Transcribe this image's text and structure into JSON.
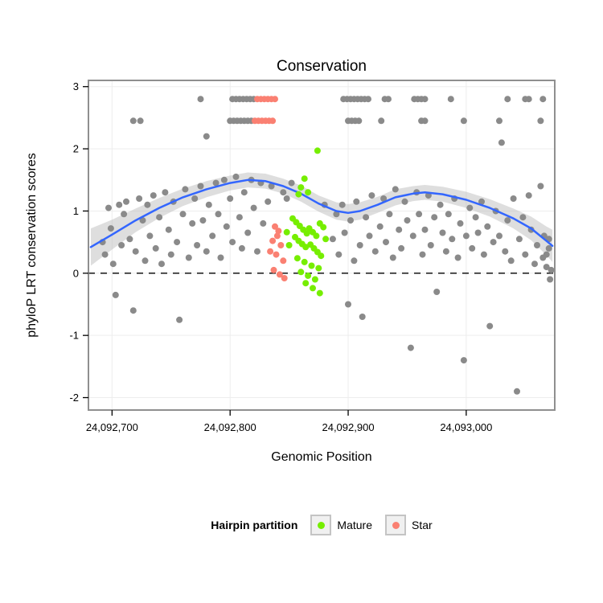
{
  "chart": {
    "title": "Conservation",
    "x_label": "Genomic Position",
    "y_label": "phyloP LRT conservation scores"
  },
  "legend": {
    "title": "Hairpin partition",
    "items": [
      {
        "label": "Mature",
        "color": "#76EE00"
      },
      {
        "label": "Star",
        "color": "#FA8072"
      }
    ]
  },
  "chart_data": {
    "type": "scatter",
    "title": "Conservation",
    "xlabel": "Genomic Position",
    "ylabel": "phyloP LRT conservation scores",
    "x_domain": [
      24092680,
      24093075
    ],
    "y_domain": [
      -2.2,
      3.1
    ],
    "hline": 0,
    "grid": true,
    "legend_position": "bottom",
    "x_ticks": [
      {
        "value": 24092700,
        "label": "24,092,700"
      },
      {
        "value": 24092800,
        "label": "24,092,800"
      },
      {
        "value": 24092900,
        "label": "24,092,900"
      },
      {
        "value": 24093000,
        "label": "24,093,000"
      }
    ],
    "y_ticks": [
      {
        "value": 3,
        "label": "3"
      },
      {
        "value": 2,
        "label": "2"
      },
      {
        "value": 1,
        "label": "1"
      },
      {
        "value": 0,
        "label": "0"
      },
      {
        "value": -1,
        "label": "-1"
      },
      {
        "value": -2,
        "label": "-2"
      }
    ],
    "colors": {
      "other": "#8a8a8a",
      "mature": "#76EE00",
      "star": "#FA8072",
      "smooth": "#3366FF",
      "band": "#bdbdbd",
      "grid": "#ededed",
      "border": "#8f8f8f"
    },
    "series": [
      {
        "name": "Other",
        "color": "#8a8a8a",
        "points": [
          [
            24092692,
            0.5
          ],
          [
            24092694,
            0.3
          ],
          [
            24092697,
            1.05
          ],
          [
            24092699,
            0.72
          ],
          [
            24092701,
            0.15
          ],
          [
            24092703,
            -0.35
          ],
          [
            24092706,
            1.1
          ],
          [
            24092708,
            0.45
          ],
          [
            24092710,
            0.95
          ],
          [
            24092712,
            1.15
          ],
          [
            24092715,
            0.55
          ],
          [
            24092718,
            -0.6
          ],
          [
            24092720,
            0.35
          ],
          [
            24092723,
            1.2
          ],
          [
            24092726,
            0.85
          ],
          [
            24092728,
            0.2
          ],
          [
            24092730,
            1.1
          ],
          [
            24092732,
            0.6
          ],
          [
            24092735,
            1.25
          ],
          [
            24092737,
            0.4
          ],
          [
            24092740,
            0.9
          ],
          [
            24092742,
            0.15
          ],
          [
            24092745,
            1.3
          ],
          [
            24092748,
            0.7
          ],
          [
            24092750,
            0.3
          ],
          [
            24092752,
            1.15
          ],
          [
            24092755,
            0.5
          ],
          [
            24092757,
            -0.75
          ],
          [
            24092760,
            0.95
          ],
          [
            24092762,
            1.35
          ],
          [
            24092765,
            0.25
          ],
          [
            24092768,
            0.8
          ],
          [
            24092770,
            1.2
          ],
          [
            24092780,
            2.2
          ],
          [
            24092772,
            0.45
          ],
          [
            24092775,
            1.4
          ],
          [
            24092777,
            0.85
          ],
          [
            24092780,
            0.35
          ],
          [
            24092782,
            1.1
          ],
          [
            24092785,
            0.6
          ],
          [
            24092788,
            1.45
          ],
          [
            24092790,
            0.95
          ],
          [
            24092792,
            0.25
          ],
          [
            24092795,
            1.5
          ],
          [
            24092797,
            0.75
          ],
          [
            24092800,
            1.2
          ],
          [
            24092802,
            0.5
          ],
          [
            24092805,
            1.55
          ],
          [
            24092808,
            0.9
          ],
          [
            24092810,
            0.4
          ],
          [
            24092812,
            1.3
          ],
          [
            24092815,
            0.65
          ],
          [
            24092818,
            1.5
          ],
          [
            24092820,
            1.05
          ],
          [
            24092823,
            0.35
          ],
          [
            24092826,
            1.45
          ],
          [
            24092828,
            0.8
          ],
          [
            24092832,
            1.15
          ],
          [
            24092835,
            1.4
          ],
          [
            24092845,
            1.3
          ],
          [
            24092848,
            1.2
          ],
          [
            24092852,
            1.45
          ],
          [
            24092880,
            1.1
          ],
          [
            24092887,
            0.55
          ],
          [
            24092890,
            0.95
          ],
          [
            24092892,
            0.3
          ],
          [
            24092895,
            1.1
          ],
          [
            24092897,
            0.65
          ],
          [
            24092900,
            -0.5
          ],
          [
            24092902,
            0.85
          ],
          [
            24092905,
            0.2
          ],
          [
            24092907,
            1.15
          ],
          [
            24092910,
            0.45
          ],
          [
            24092912,
            -0.7
          ],
          [
            24092915,
            0.9
          ],
          [
            24092918,
            0.6
          ],
          [
            24092920,
            1.25
          ],
          [
            24092923,
            0.35
          ],
          [
            24092927,
            0.75
          ],
          [
            24092930,
            1.2
          ],
          [
            24092932,
            0.5
          ],
          [
            24092935,
            0.95
          ],
          [
            24092938,
            0.25
          ],
          [
            24092940,
            1.35
          ],
          [
            24092943,
            0.7
          ],
          [
            24092945,
            0.4
          ],
          [
            24092948,
            1.15
          ],
          [
            24092950,
            0.85
          ],
          [
            24092953,
            -1.2
          ],
          [
            24092955,
            0.6
          ],
          [
            24092958,
            1.3
          ],
          [
            24092960,
            0.95
          ],
          [
            24092963,
            0.3
          ],
          [
            24092965,
            0.7
          ],
          [
            24092968,
            1.25
          ],
          [
            24092970,
            0.45
          ],
          [
            24092973,
            0.9
          ],
          [
            24092975,
            -0.3
          ],
          [
            24092978,
            1.1
          ],
          [
            24092980,
            0.65
          ],
          [
            24092983,
            0.35
          ],
          [
            24092985,
            0.95
          ],
          [
            24092988,
            0.55
          ],
          [
            24092990,
            1.2
          ],
          [
            24092993,
            0.25
          ],
          [
            24092995,
            0.8
          ],
          [
            24092998,
            -1.4
          ],
          [
            24093000,
            0.6
          ],
          [
            24093003,
            1.05
          ],
          [
            24093005,
            0.4
          ],
          [
            24093008,
            0.9
          ],
          [
            24093010,
            0.65
          ],
          [
            24093013,
            1.15
          ],
          [
            24093015,
            0.3
          ],
          [
            24093018,
            0.75
          ],
          [
            24093020,
            -0.85
          ],
          [
            24093023,
            0.5
          ],
          [
            24093025,
            1.0
          ],
          [
            24093028,
            0.6
          ],
          [
            24093030,
            2.1
          ],
          [
            24093033,
            0.35
          ],
          [
            24093035,
            0.85
          ],
          [
            24093038,
            0.2
          ],
          [
            24093040,
            1.2
          ],
          [
            24093043,
            -1.9
          ],
          [
            24093045,
            0.55
          ],
          [
            24093048,
            0.9
          ],
          [
            24093050,
            0.3
          ],
          [
            24093053,
            1.25
          ],
          [
            24093055,
            0.7
          ],
          [
            24093058,
            0.15
          ],
          [
            24093060,
            0.45
          ],
          [
            24093063,
            1.4
          ],
          [
            24093065,
            0.25
          ],
          [
            24093066,
            0.6
          ],
          [
            24093068,
            0.1
          ],
          [
            24093070,
            0.4
          ],
          [
            24093071,
            -0.1
          ],
          [
            24093070,
            0.55
          ],
          [
            24093072,
            0.05
          ],
          [
            24093068,
            0.3
          ],
          [
            24092775,
            2.8
          ],
          [
            24092802,
            2.8
          ],
          [
            24092805,
            2.8
          ],
          [
            24092808,
            2.8
          ],
          [
            24092811,
            2.8
          ],
          [
            24092814,
            2.8
          ],
          [
            24092817,
            2.8
          ],
          [
            24092820,
            2.8
          ],
          [
            24092896,
            2.8
          ],
          [
            24092899,
            2.8
          ],
          [
            24092902,
            2.8
          ],
          [
            24092905,
            2.8
          ],
          [
            24092908,
            2.8
          ],
          [
            24092911,
            2.8
          ],
          [
            24092914,
            2.8
          ],
          [
            24092917,
            2.8
          ],
          [
            24092931,
            2.8
          ],
          [
            24092934,
            2.8
          ],
          [
            24092956,
            2.8
          ],
          [
            24092959,
            2.8
          ],
          [
            24092962,
            2.8
          ],
          [
            24092965,
            2.8
          ],
          [
            24092987,
            2.8
          ],
          [
            24093035,
            2.8
          ],
          [
            24093050,
            2.8
          ],
          [
            24093053,
            2.8
          ],
          [
            24093065,
            2.8
          ],
          [
            24092718,
            2.45
          ],
          [
            24092724,
            2.45
          ],
          [
            24092800,
            2.45
          ],
          [
            24092803,
            2.45
          ],
          [
            24092806,
            2.45
          ],
          [
            24092809,
            2.45
          ],
          [
            24092812,
            2.45
          ],
          [
            24092815,
            2.45
          ],
          [
            24092818,
            2.45
          ],
          [
            24092900,
            2.45
          ],
          [
            24092903,
            2.45
          ],
          [
            24092906,
            2.45
          ],
          [
            24092909,
            2.45
          ],
          [
            24092928,
            2.45
          ],
          [
            24092962,
            2.45
          ],
          [
            24092965,
            2.45
          ],
          [
            24092998,
            2.45
          ],
          [
            24093028,
            2.45
          ],
          [
            24093063,
            2.45
          ]
        ]
      },
      {
        "name": "Mature",
        "color": "#76EE00",
        "points": [
          [
            24092874,
            1.97
          ],
          [
            24092863,
            1.52
          ],
          [
            24092860,
            1.38
          ],
          [
            24092858,
            1.27
          ],
          [
            24092866,
            1.3
          ],
          [
            24092853,
            0.88
          ],
          [
            24092856,
            0.82
          ],
          [
            24092859,
            0.76
          ],
          [
            24092862,
            0.7
          ],
          [
            24092865,
            0.64
          ],
          [
            24092855,
            0.58
          ],
          [
            24092858,
            0.52
          ],
          [
            24092861,
            0.47
          ],
          [
            24092864,
            0.42
          ],
          [
            24092867,
            0.72
          ],
          [
            24092870,
            0.66
          ],
          [
            24092873,
            0.6
          ],
          [
            24092876,
            0.8
          ],
          [
            24092879,
            0.74
          ],
          [
            24092868,
            0.46
          ],
          [
            24092871,
            0.4
          ],
          [
            24092874,
            0.34
          ],
          [
            24092877,
            0.28
          ],
          [
            24092857,
            0.24
          ],
          [
            24092863,
            0.18
          ],
          [
            24092869,
            0.12
          ],
          [
            24092875,
            0.08
          ],
          [
            24092860,
            0.02
          ],
          [
            24092866,
            -0.04
          ],
          [
            24092872,
            -0.1
          ],
          [
            24092864,
            -0.16
          ],
          [
            24092870,
            -0.24
          ],
          [
            24092876,
            -0.32
          ],
          [
            24092881,
            0.55
          ],
          [
            24092848,
            0.66
          ],
          [
            24092850,
            0.45
          ]
        ]
      },
      {
        "name": "Star",
        "color": "#FA8072",
        "points": [
          [
            24092838,
            0.75
          ],
          [
            24092841,
            0.68
          ],
          [
            24092836,
            0.52
          ],
          [
            24092843,
            0.45
          ],
          [
            24092840,
            0.6
          ],
          [
            24092839,
            0.3
          ],
          [
            24092845,
            0.2
          ],
          [
            24092837,
            0.05
          ],
          [
            24092842,
            -0.02
          ],
          [
            24092846,
            -0.08
          ],
          [
            24092834,
            0.35
          ],
          [
            24092823,
            2.8
          ],
          [
            24092826,
            2.8
          ],
          [
            24092829,
            2.8
          ],
          [
            24092832,
            2.8
          ],
          [
            24092835,
            2.8
          ],
          [
            24092838,
            2.8
          ],
          [
            24092821,
            2.45
          ],
          [
            24092824,
            2.45
          ],
          [
            24092827,
            2.45
          ],
          [
            24092830,
            2.45
          ],
          [
            24092833,
            2.45
          ],
          [
            24092836,
            2.45
          ]
        ]
      }
    ],
    "smooth": {
      "color": "#3366FF",
      "x": [
        24092682,
        24092700,
        24092720,
        24092740,
        24092760,
        24092780,
        24092800,
        24092815,
        24092830,
        24092845,
        24092860,
        24092875,
        24092890,
        24092900,
        24092910,
        24092925,
        24092940,
        24092955,
        24092965,
        24092980,
        24093000,
        24093020,
        24093040,
        24093055,
        24093068,
        24093073
      ],
      "y": [
        0.42,
        0.62,
        0.85,
        1.05,
        1.22,
        1.35,
        1.45,
        1.5,
        1.48,
        1.4,
        1.28,
        1.12,
        1.0,
        0.97,
        1.0,
        1.1,
        1.22,
        1.28,
        1.3,
        1.27,
        1.18,
        1.05,
        0.88,
        0.72,
        0.52,
        0.44
      ],
      "half_width": [
        0.3,
        0.24,
        0.19,
        0.16,
        0.14,
        0.13,
        0.12,
        0.12,
        0.12,
        0.12,
        0.13,
        0.13,
        0.14,
        0.14,
        0.14,
        0.13,
        0.13,
        0.12,
        0.12,
        0.12,
        0.13,
        0.14,
        0.16,
        0.19,
        0.23,
        0.26
      ]
    }
  }
}
